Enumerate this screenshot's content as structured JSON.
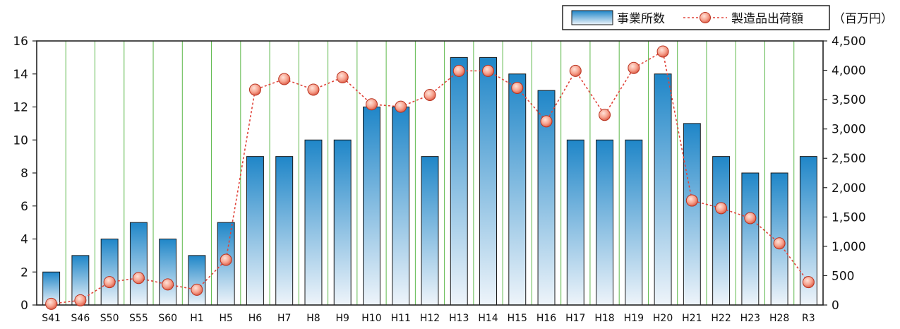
{
  "chart_data": {
    "type": "bar",
    "categories": [
      "S41",
      "S46",
      "S50",
      "S55",
      "S60",
      "H1",
      "H5",
      "H6",
      "H7",
      "H8",
      "H9",
      "H10",
      "H11",
      "H12",
      "H13",
      "H14",
      "H15",
      "H16",
      "H17",
      "H18",
      "H19",
      "H20",
      "H21",
      "H22",
      "H23",
      "H28",
      "R3"
    ],
    "series": [
      {
        "name": "事業所数",
        "type": "bar",
        "axis": "left",
        "values": [
          2,
          3,
          4,
          5,
          4,
          3,
          5,
          9,
          9,
          10,
          10,
          12,
          12,
          9,
          15,
          15,
          14,
          13,
          10,
          10,
          10,
          14,
          11,
          9,
          8,
          8,
          9
        ]
      },
      {
        "name": "製造品出荷額",
        "type": "line",
        "axis": "right",
        "values": [
          20,
          80,
          390,
          460,
          350,
          260,
          770,
          3670,
          3850,
          3670,
          3880,
          3420,
          3380,
          3580,
          3990,
          3990,
          3700,
          3130,
          3990,
          3240,
          4040,
          4320,
          1780,
          1650,
          1480,
          1050,
          390
        ]
      }
    ],
    "ylim_left": [
      0,
      16
    ],
    "yticks_left": [
      "0",
      "2",
      "4",
      "6",
      "8",
      "10",
      "12",
      "14",
      "16"
    ],
    "ylim_right": [
      0,
      4500
    ],
    "yticks_right": [
      "0",
      "500",
      "1,000",
      "1,500",
      "2,000",
      "2,500",
      "3,000",
      "3,500",
      "4,000",
      "4,500"
    ],
    "right_unit_label": "（百万円）",
    "legend": {
      "placement": "top-right",
      "bar_label": "事業所数",
      "line_label": "製造品出荷額"
    },
    "grid": "vertical",
    "colors": {
      "bar_top": "#1f86c8",
      "bar_bottom": "#eef4fa",
      "bar_stroke": "#1a1a1a",
      "line": "#e0443a",
      "marker_fill": "#f7a38f",
      "grid": "#5cb84a",
      "frame": "#222222"
    }
  }
}
